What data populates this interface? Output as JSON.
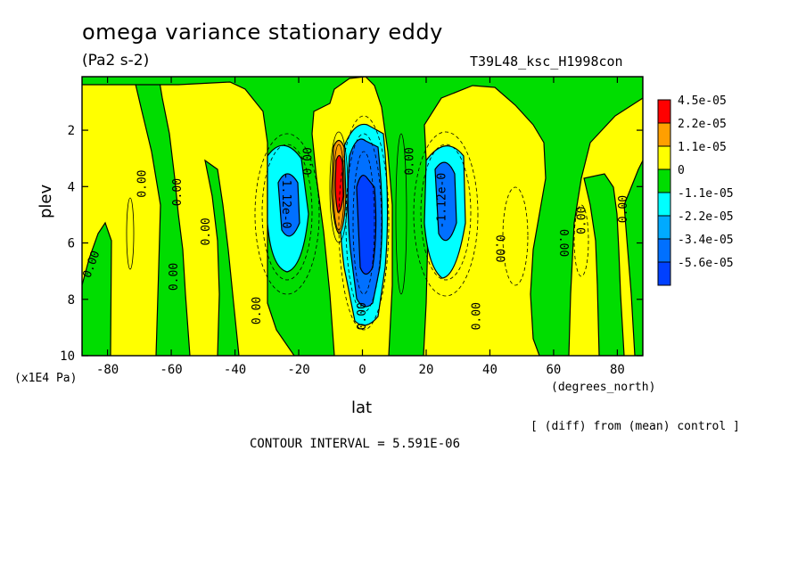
{
  "chart_data": {
    "type": "heatmap",
    "title": "omega variance stationary eddy",
    "units": "(Pa2 s-2)",
    "run_id": "T39L48_ksc_H1998con",
    "ylabel": "plev",
    "yunits": "(x1E4 Pa)",
    "xlabel": "lat",
    "xunits": "(degrees_north)",
    "note": "[ (diff) from (mean) control ]",
    "contour_interval": "CONTOUR INTERVAL = 5.591E-06",
    "xlim": [
      -88,
      88
    ],
    "ylim": [
      10,
      0.1
    ],
    "xticks": [
      -80,
      -60,
      -40,
      -20,
      0,
      20,
      40,
      60,
      80
    ],
    "yticks": [
      2,
      4,
      6,
      8,
      10
    ],
    "legend": {
      "levels": [
        "4.5e-05",
        "2.2e-05",
        "1.1e-05",
        "0",
        "-1.1e-05",
        "-2.2e-05",
        "-3.4e-05",
        "-5.6e-05"
      ],
      "colors": [
        "#ff0000",
        "#ff9f00",
        "#ffff00",
        "#00dd00",
        "#00ffff",
        "#00aaff",
        "#0070ff",
        "#0040ff"
      ]
    },
    "features": [
      {
        "kind": "negative-cell",
        "lat": -25,
        "plev_range": [
          2.6,
          7.2
        ],
        "value": "-1.12e-05",
        "label": "-1.12e-0"
      },
      {
        "kind": "negative-cell",
        "lat": 26,
        "plev_range": [
          2.6,
          7.4
        ],
        "value": "-1.12e-05",
        "label": "-1.12e-0"
      },
      {
        "kind": "negative-cell",
        "lat": 2,
        "plev_range": [
          2.0,
          9.5
        ],
        "value": "-5.6e-05"
      },
      {
        "kind": "positive-cell",
        "lat": -7,
        "plev_range": [
          2.4,
          6.0
        ],
        "value": "4.5e-05"
      }
    ],
    "contour_labels": [
      "0.00",
      "-1.12e-0",
      "-1.12e-0",
      "0.00",
      "0.00",
      "0.00",
      "0.00",
      "0.00",
      "0.00",
      "0.00",
      "0.00",
      "0.00",
      "0.00",
      "0.00",
      "0.00",
      "0.00"
    ]
  }
}
